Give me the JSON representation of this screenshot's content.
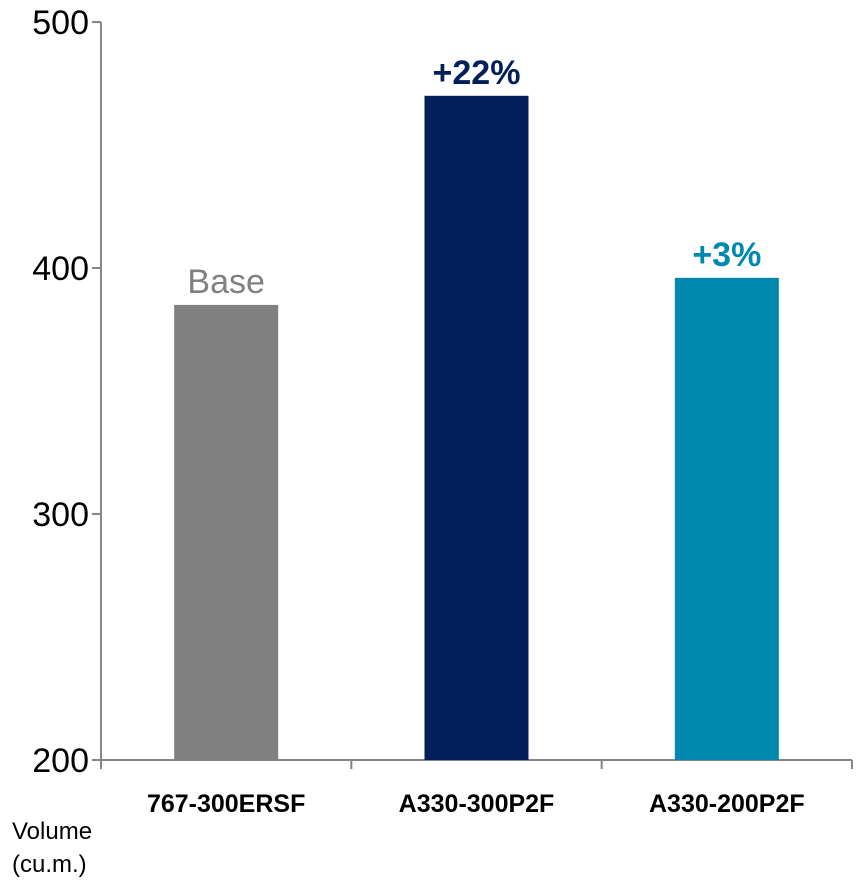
{
  "chart_data": {
    "type": "bar",
    "title": "",
    "xlabel": "",
    "ylabel": "Volume\n(cu.m.)",
    "ylim": [
      200,
      500
    ],
    "yticks": [
      200,
      300,
      400,
      500
    ],
    "grid": false,
    "categories": [
      "767-300ERSF",
      "A330-300P2F",
      "A330-200P2F"
    ],
    "values": [
      385,
      470,
      396
    ],
    "bar_colors": [
      "#808080",
      "#001F5B",
      "#0088AE"
    ],
    "data_labels": [
      "Base",
      "+22%",
      "+3%"
    ],
    "data_label_colors": [
      "#808080",
      "#001F5B",
      "#0088AE"
    ],
    "data_label_bold": [
      false,
      true,
      true
    ]
  }
}
